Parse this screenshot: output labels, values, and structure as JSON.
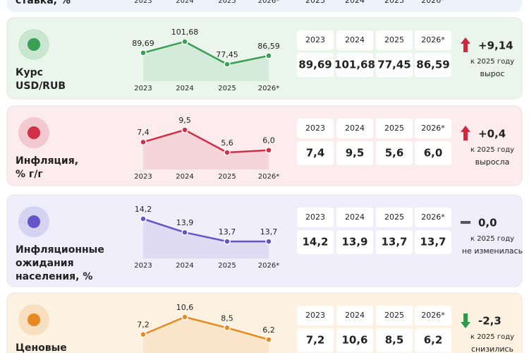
{
  "years": [
    "2023",
    "2024",
    "2025",
    "2026*"
  ],
  "top_label": "ставка, %",
  "rows": [
    {
      "label_lines": [
        "Курс",
        "USD/RUB"
      ],
      "color": "#3a9e55",
      "background": "#eaf6ec",
      "values": [
        89.69,
        101.68,
        77.45,
        86.59
      ],
      "value_labels": [
        "89,69",
        "101,68",
        "77,45",
        "86,59"
      ],
      "direction": "up",
      "change": "+9,14",
      "change_note": "к 2025 году",
      "status": "вырос"
    },
    {
      "label_lines": [
        "Инфляция,",
        "% г/г"
      ],
      "color": "#cf2f47",
      "background": "#fcecee",
      "values": [
        7.4,
        9.5,
        5.6,
        6.0
      ],
      "value_labels": [
        "7,4",
        "9,5",
        "5,6",
        "6,0"
      ],
      "direction": "up",
      "change": "+0,4",
      "change_note": "к 2025 году",
      "status": "выросла"
    },
    {
      "label_lines": [
        "Инфляционные",
        "ожидания",
        "населения, %"
      ],
      "color": "#6555c8",
      "background": "#f0eefa",
      "values": [
        14.2,
        13.9,
        13.7,
        13.7
      ],
      "value_labels": [
        "14,2",
        "13,9",
        "13,7",
        "13,7"
      ],
      "direction": "flat",
      "change": "0,0",
      "change_note": "к 2025 году",
      "status": "не изменилась"
    },
    {
      "label_lines": [
        "Ценовые"
      ],
      "color": "#e68a22",
      "background": "#fdf2e2",
      "values": [
        7.2,
        10.6,
        8.5,
        6.2
      ],
      "value_labels": [
        "7,2",
        "10,6",
        "8,5",
        "6,2"
      ],
      "direction": "down",
      "change": "-2,3",
      "change_note": "к 2025 году",
      "status": "снизились"
    }
  ]
}
